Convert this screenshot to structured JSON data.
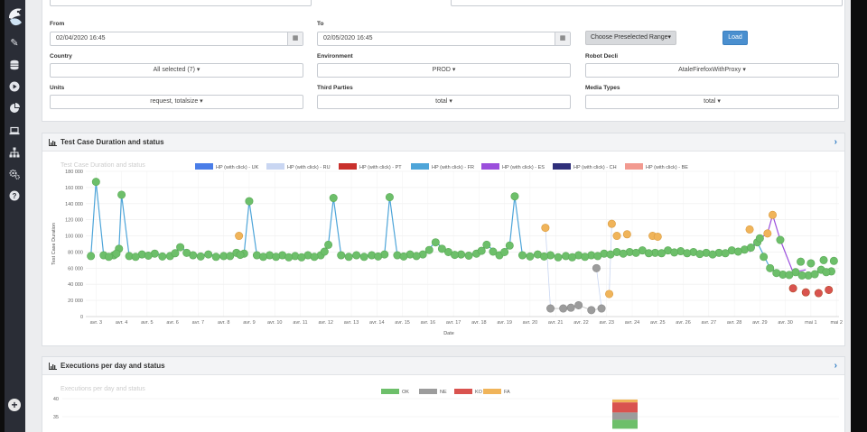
{
  "filters": {
    "from": {
      "label": "From",
      "value": "02/04/2020 16:45"
    },
    "to": {
      "label": "To",
      "value": "02/05/2020 16:45"
    },
    "preset_button": "Choose Preselected Range▾",
    "load_button": "Load",
    "country": {
      "label": "Country",
      "value": "All selected (7) ▾"
    },
    "environment": {
      "label": "Environment",
      "value": "PROD ▾"
    },
    "robot": {
      "label": "Robot Decli",
      "value": "AtaleFirefoxWithProxy ▾"
    },
    "units": {
      "label": "Units",
      "value": "request, totalsize ▾"
    },
    "third_parties": {
      "label": "Third Parties",
      "value": "total ▾"
    },
    "media_types": {
      "label": "Media Types",
      "value": "total ▾"
    }
  },
  "panel1": {
    "title": "Test Case Duration and status",
    "ghost_title": "Test Case Duration and status"
  },
  "panel2": {
    "title": "Executions per day and status",
    "ghost_title": "Executions per day and status"
  },
  "icons": [
    "logo-icon",
    "edit-icon",
    "database-icon",
    "play-icon",
    "pie-chart-icon",
    "laptop-icon",
    "sitemap-icon",
    "cogs-icon",
    "help-icon",
    "add-icon"
  ],
  "chart_data": [
    {
      "type": "line",
      "xlabel": "Date",
      "ylabel": "Test Case Duration",
      "ylim": [
        0,
        180000
      ],
      "yticks": [
        "0",
        "20 000",
        "40 000",
        "60 000",
        "80 000",
        "100 000",
        "120 000",
        "140 000",
        "160 000",
        "180 000"
      ],
      "categories": [
        "avr. 3",
        "avr. 4",
        "avr. 5",
        "avr. 6",
        "avr. 7",
        "avr. 8",
        "avr. 9",
        "avr. 10",
        "avr. 11",
        "avr. 12",
        "avr. 13",
        "avr. 14",
        "avr. 15",
        "avr. 16",
        "avr. 17",
        "avr. 18",
        "avr. 19",
        "avr. 20",
        "avr. 21",
        "avr. 22",
        "avr. 23",
        "avr. 24",
        "avr. 25",
        "avr. 26",
        "avr. 27",
        "avr. 28",
        "avr. 29",
        "avr. 30",
        "mai 1",
        "mai 2"
      ],
      "legend_position": "top",
      "grid": true,
      "status_colors": {
        "ok": "#6dbf6a",
        "ne": "#9c9c9c",
        "fa": "#f0b45a",
        "ko": "#d9534f"
      },
      "series": [
        {
          "name": "HP (with click) - UK",
          "color": "#4a7de8"
        },
        {
          "name": "HP (with click) - RU",
          "color": "#c9d6f2"
        },
        {
          "name": "HP (with click) - PT",
          "color": "#c9302c"
        },
        {
          "name": "HP (with click) - FR",
          "color": "#4ea5d9",
          "points": [
            {
              "x": 2.8,
              "y": 75000
            },
            {
              "x": 3.0,
              "y": 167000
            },
            {
              "x": 3.3,
              "y": 76000
            },
            {
              "x": 3.7,
              "y": 76000
            },
            {
              "x": 3.9,
              "y": 84000
            },
            {
              "x": 4.0,
              "y": 151000
            },
            {
              "x": 4.3,
              "y": 75000
            },
            {
              "x": 4.8,
              "y": 77000
            },
            {
              "x": 5.3,
              "y": 78000
            },
            {
              "x": 5.9,
              "y": 75000
            },
            {
              "x": 6.3,
              "y": 86000
            },
            {
              "x": 6.8,
              "y": 76000
            },
            {
              "x": 7.4,
              "y": 77000
            },
            {
              "x": 8.0,
              "y": 75000
            },
            {
              "x": 8.5,
              "y": 79000
            },
            {
              "x": 8.8,
              "y": 78000
            },
            {
              "x": 9.0,
              "y": 143000
            },
            {
              "x": 9.3,
              "y": 76000
            },
            {
              "x": 9.8,
              "y": 76000
            },
            {
              "x": 10.3,
              "y": 76000
            },
            {
              "x": 10.8,
              "y": 75000
            },
            {
              "x": 11.3,
              "y": 76000
            },
            {
              "x": 11.8,
              "y": 76000
            },
            {
              "x": 12.1,
              "y": 89000
            },
            {
              "x": 12.3,
              "y": 147000
            },
            {
              "x": 12.6,
              "y": 76000
            },
            {
              "x": 13.2,
              "y": 76000
            },
            {
              "x": 13.8,
              "y": 76000
            },
            {
              "x": 14.3,
              "y": 77000
            },
            {
              "x": 14.5,
              "y": 148000
            },
            {
              "x": 14.8,
              "y": 76000
            },
            {
              "x": 15.3,
              "y": 77000
            },
            {
              "x": 15.8,
              "y": 77000
            },
            {
              "x": 16.3,
              "y": 92000
            },
            {
              "x": 16.8,
              "y": 80000
            },
            {
              "x": 17.3,
              "y": 77000
            },
            {
              "x": 17.9,
              "y": 78000
            },
            {
              "x": 18.3,
              "y": 89000
            },
            {
              "x": 18.8,
              "y": 76000
            },
            {
              "x": 19.2,
              "y": 88000
            },
            {
              "x": 19.4,
              "y": 149000
            },
            {
              "x": 19.7,
              "y": 76000
            },
            {
              "x": 20.3,
              "y": 77000
            },
            {
              "x": 20.8,
              "y": 76000
            },
            {
              "x": 21.4,
              "y": 75000
            },
            {
              "x": 21.9,
              "y": 76000
            },
            {
              "x": 22.4,
              "y": 76000
            },
            {
              "x": 22.9,
              "y": 78000
            },
            {
              "x": 23.4,
              "y": 80000
            },
            {
              "x": 23.9,
              "y": 80000
            },
            {
              "x": 24.4,
              "y": 82000
            },
            {
              "x": 24.9,
              "y": 79000
            },
            {
              "x": 25.4,
              "y": 82000
            },
            {
              "x": 25.9,
              "y": 81000
            },
            {
              "x": 26.4,
              "y": 80000
            },
            {
              "x": 26.9,
              "y": 79000
            },
            {
              "x": 27.4,
              "y": 79000
            },
            {
              "x": 27.9,
              "y": 82000
            },
            {
              "x": 28.4,
              "y": 83000
            },
            {
              "x": 28.9,
              "y": 92000
            },
            {
              "x": 29.4,
              "y": 60000
            },
            {
              "x": 29.9,
              "y": 52000
            },
            {
              "x": 30.4,
              "y": 55000
            },
            {
              "x": 30.9,
              "y": 51000
            },
            {
              "x": 31.4,
              "y": 58000
            },
            {
              "x": 31.8,
              "y": 56000
            }
          ]
        },
        {
          "name": "HP (with click) - ES",
          "color": "#9b4fdc"
        },
        {
          "name": "HP (with click) - CH",
          "color": "#2f2f7a"
        },
        {
          "name": "HP (with click) - BE",
          "color": "#f29a90"
        }
      ],
      "status_points": [
        {
          "x": 8.6,
          "y": 100000,
          "status": "fa"
        },
        {
          "x": 20.6,
          "y": 110000,
          "status": "fa"
        },
        {
          "x": 20.8,
          "y": 10000,
          "status": "ne"
        },
        {
          "x": 21.3,
          "y": 10000,
          "status": "ne"
        },
        {
          "x": 21.6,
          "y": 11000,
          "status": "ne"
        },
        {
          "x": 21.9,
          "y": 14000,
          "status": "ne"
        },
        {
          "x": 22.4,
          "y": 8000,
          "status": "ne"
        },
        {
          "x": 22.8,
          "y": 10000,
          "status": "ne"
        },
        {
          "x": 22.6,
          "y": 60000,
          "status": "ne"
        },
        {
          "x": 23.1,
          "y": 28000,
          "status": "fa"
        },
        {
          "x": 23.2,
          "y": 115000,
          "status": "fa"
        },
        {
          "x": 23.4,
          "y": 100000,
          "status": "fa"
        },
        {
          "x": 23.8,
          "y": 102000,
          "status": "fa"
        },
        {
          "x": 24.8,
          "y": 100000,
          "status": "fa"
        },
        {
          "x": 25.0,
          "y": 99000,
          "status": "fa"
        },
        {
          "x": 29.5,
          "y": 126000,
          "status": "fa"
        },
        {
          "x": 29.3,
          "y": 103000,
          "status": "fa"
        },
        {
          "x": 29.8,
          "y": 95000,
          "status": "ok"
        },
        {
          "x": 29.0,
          "y": 97000,
          "status": "ok"
        },
        {
          "x": 28.6,
          "y": 108000,
          "status": "fa"
        },
        {
          "x": 30.3,
          "y": 35000,
          "status": "ko"
        },
        {
          "x": 30.8,
          "y": 30000,
          "status": "ko"
        },
        {
          "x": 31.3,
          "y": 29000,
          "status": "ko"
        },
        {
          "x": 31.7,
          "y": 33000,
          "status": "ko"
        },
        {
          "x": 30.6,
          "y": 68000,
          "status": "ok"
        },
        {
          "x": 31.0,
          "y": 66000,
          "status": "ok"
        },
        {
          "x": 31.5,
          "y": 70000,
          "status": "ok"
        },
        {
          "x": 31.9,
          "y": 69000,
          "status": "ok"
        }
      ]
    },
    {
      "type": "bar",
      "legend_position": "top",
      "yticks_visible": [
        "40",
        "35"
      ],
      "series": [
        {
          "name": "OK",
          "color": "#6dbf6a"
        },
        {
          "name": "NE",
          "color": "#9c9c9c"
        },
        {
          "name": "KO",
          "color": "#d9534f"
        },
        {
          "name": "FA",
          "color": "#f0b45a"
        }
      ],
      "visible_bar": {
        "category": "avr. 24",
        "segments": [
          {
            "series": "FA",
            "value": 0.8
          },
          {
            "series": "KO",
            "value": 2.8
          },
          {
            "series": "NE",
            "value": 2.0
          },
          {
            "series": "OK",
            "value": 2.5
          }
        ]
      }
    }
  ]
}
